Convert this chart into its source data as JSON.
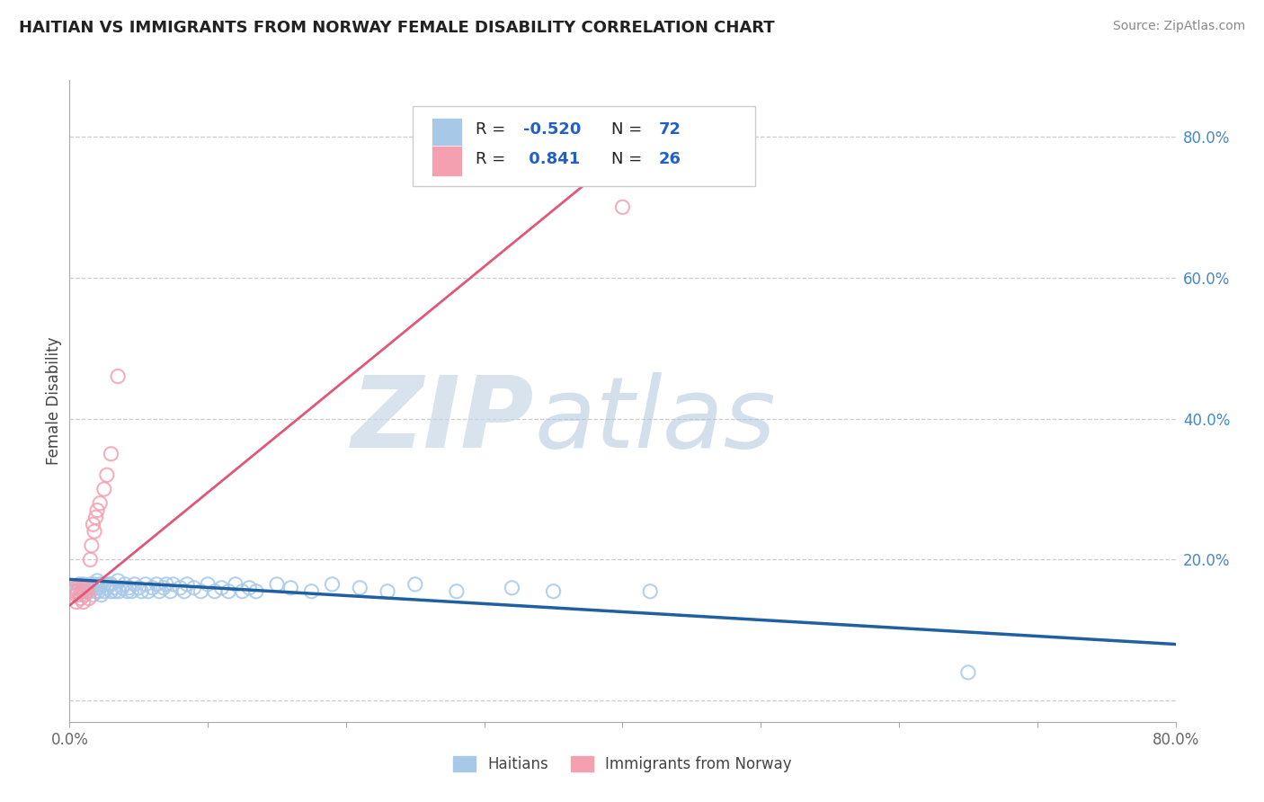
{
  "title": "HAITIAN VS IMMIGRANTS FROM NORWAY FEMALE DISABILITY CORRELATION CHART",
  "source": "Source: ZipAtlas.com",
  "ylabel": "Female Disability",
  "xmin": 0.0,
  "xmax": 0.8,
  "ymin": -0.03,
  "ymax": 0.88,
  "x_ticks": [
    0.0,
    0.1,
    0.2,
    0.3,
    0.4,
    0.5,
    0.6,
    0.7,
    0.8
  ],
  "y_ticks_right": [
    0.0,
    0.2,
    0.4,
    0.6,
    0.8
  ],
  "y_tick_labels_right": [
    "",
    "20.0%",
    "40.0%",
    "60.0%",
    "80.0%"
  ],
  "legend_label1": "Haitians",
  "legend_label2": "Immigrants from Norway",
  "blue_color": "#a8c8e8",
  "pink_color": "#f4a0b0",
  "blue_scatter_edge": "#7aace0",
  "pink_scatter_edge": "#e87090",
  "blue_line_color": "#2060a0",
  "pink_line_color": "#e05878",
  "r_value_color": "#2060c8",
  "watermark_zip_color": "#c8d8e8",
  "watermark_atlas_color": "#b0c8dc",
  "blue_scatter_x": [
    0.005,
    0.005,
    0.007,
    0.008,
    0.009,
    0.01,
    0.01,
    0.012,
    0.013,
    0.015,
    0.015,
    0.016,
    0.017,
    0.018,
    0.019,
    0.02,
    0.02,
    0.021,
    0.022,
    0.023,
    0.025,
    0.025,
    0.027,
    0.028,
    0.03,
    0.03,
    0.032,
    0.033,
    0.035,
    0.036,
    0.038,
    0.04,
    0.042,
    0.043,
    0.045,
    0.047,
    0.05,
    0.052,
    0.055,
    0.057,
    0.06,
    0.063,
    0.065,
    0.068,
    0.07,
    0.073,
    0.075,
    0.08,
    0.083,
    0.085,
    0.09,
    0.095,
    0.1,
    0.105,
    0.11,
    0.115,
    0.12,
    0.125,
    0.13,
    0.135,
    0.15,
    0.16,
    0.175,
    0.19,
    0.21,
    0.23,
    0.25,
    0.28,
    0.32,
    0.35,
    0.42,
    0.65
  ],
  "blue_scatter_y": [
    0.155,
    0.16,
    0.165,
    0.15,
    0.16,
    0.155,
    0.165,
    0.16,
    0.155,
    0.165,
    0.155,
    0.16,
    0.15,
    0.165,
    0.155,
    0.16,
    0.17,
    0.155,
    0.165,
    0.15,
    0.165,
    0.155,
    0.16,
    0.165,
    0.155,
    0.165,
    0.16,
    0.155,
    0.17,
    0.155,
    0.16,
    0.165,
    0.155,
    0.16,
    0.155,
    0.165,
    0.16,
    0.155,
    0.165,
    0.155,
    0.16,
    0.165,
    0.155,
    0.16,
    0.165,
    0.155,
    0.165,
    0.16,
    0.155,
    0.165,
    0.16,
    0.155,
    0.165,
    0.155,
    0.16,
    0.155,
    0.165,
    0.155,
    0.16,
    0.155,
    0.165,
    0.16,
    0.155,
    0.165,
    0.16,
    0.155,
    0.165,
    0.155,
    0.16,
    0.155,
    0.155,
    0.04
  ],
  "pink_scatter_x": [
    0.003,
    0.004,
    0.005,
    0.005,
    0.006,
    0.007,
    0.008,
    0.009,
    0.01,
    0.01,
    0.011,
    0.012,
    0.013,
    0.014,
    0.015,
    0.016,
    0.017,
    0.018,
    0.019,
    0.02,
    0.022,
    0.025,
    0.027,
    0.03,
    0.035,
    0.4
  ],
  "pink_scatter_y": [
    0.155,
    0.16,
    0.14,
    0.15,
    0.155,
    0.16,
    0.145,
    0.155,
    0.16,
    0.14,
    0.15,
    0.155,
    0.16,
    0.145,
    0.2,
    0.22,
    0.25,
    0.24,
    0.26,
    0.27,
    0.28,
    0.3,
    0.32,
    0.35,
    0.46,
    0.7
  ],
  "blue_line_x": [
    0.0,
    0.8
  ],
  "blue_line_y": [
    0.172,
    0.08
  ],
  "pink_line_x": [
    0.0,
    0.44
  ],
  "pink_line_y": [
    0.135,
    0.84
  ]
}
